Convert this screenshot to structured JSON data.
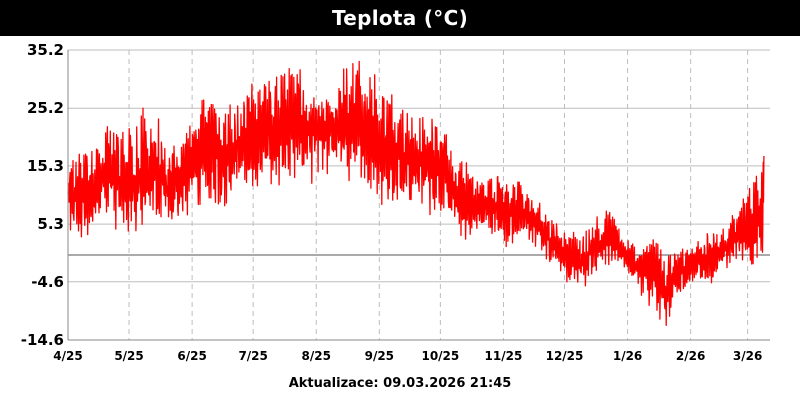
{
  "chart_data": {
    "type": "line",
    "title": "Teplota (°C)",
    "ylabel": "",
    "xlabel": "",
    "ylim": [
      -14.6,
      35.2
    ],
    "yticks": [
      "35.2",
      "25.2",
      "15.3",
      "5.3",
      "-4.6",
      "-14.6"
    ],
    "ytick_values": [
      35.2,
      25.2,
      15.3,
      5.3,
      -4.6,
      -14.6
    ],
    "xticks": [
      "4/25",
      "5/25",
      "6/25",
      "7/25",
      "8/25",
      "9/25",
      "10/25",
      "11/25",
      "12/25",
      "1/26",
      "2/26",
      "3/26"
    ],
    "grid": true,
    "zero_line": true,
    "series": [
      {
        "color": "#ff0000",
        "x": [
          "2025-04-01",
          "2025-04-08",
          "2025-04-15",
          "2025-04-22",
          "2025-04-29",
          "2025-05-06",
          "2025-05-13",
          "2025-05-20",
          "2025-05-27",
          "2025-06-03",
          "2025-06-10",
          "2025-06-17",
          "2025-06-24",
          "2025-07-01",
          "2025-07-08",
          "2025-07-15",
          "2025-07-22",
          "2025-07-29",
          "2025-08-05",
          "2025-08-12",
          "2025-08-19",
          "2025-08-26",
          "2025-09-02",
          "2025-09-09",
          "2025-09-16",
          "2025-09-23",
          "2025-09-30",
          "2025-10-07",
          "2025-10-14",
          "2025-10-21",
          "2025-10-28",
          "2025-11-04",
          "2025-11-11",
          "2025-11-18",
          "2025-11-25",
          "2025-12-02",
          "2025-12-09",
          "2025-12-16",
          "2025-12-23",
          "2025-12-30",
          "2026-01-06",
          "2026-01-13",
          "2026-01-20",
          "2026-01-27",
          "2026-02-03",
          "2026-02-10",
          "2026-02-17",
          "2026-02-24",
          "2026-03-03",
          "2026-03-09"
        ],
        "y_min": [
          2.0,
          1.0,
          4.0,
          5.0,
          3.0,
          2.0,
          3.0,
          4.0,
          5.0,
          7.0,
          8.0,
          8.0,
          9.0,
          10.0,
          11.0,
          11.0,
          12.0,
          12.0,
          13.0,
          12.0,
          11.0,
          10.0,
          8.0,
          9.0,
          8.0,
          7.0,
          6.0,
          4.0,
          2.0,
          2.0,
          1.0,
          1.0,
          2.0,
          0.0,
          -2.0,
          -5.0,
          -7.0,
          -3.0,
          -2.0,
          -2.0,
          -6.0,
          -10.0,
          -13.0,
          -8.0,
          -4.0,
          -6.0,
          -3.0,
          -2.0,
          -3.0,
          0.0
        ],
        "y_max": [
          17.0,
          19.0,
          20.0,
          24.0,
          22.0,
          25.0,
          27.0,
          18.0,
          23.0,
          26.0,
          28.0,
          27.0,
          29.0,
          30.0,
          32.0,
          33.0,
          34.0,
          30.0,
          28.0,
          32.0,
          34.0,
          35.0,
          30.0,
          28.0,
          25.0,
          24.0,
          27.0,
          17.0,
          16.0,
          15.0,
          16.0,
          14.0,
          13.0,
          10.0,
          7.0,
          5.0,
          4.0,
          7.0,
          8.0,
          3.0,
          2.0,
          4.0,
          1.0,
          2.0,
          2.0,
          5.0,
          5.0,
          9.0,
          13.0,
          17.0
        ]
      }
    ]
  },
  "footer": {
    "label": "Aktualizace: 09.03.2026 21:45"
  }
}
